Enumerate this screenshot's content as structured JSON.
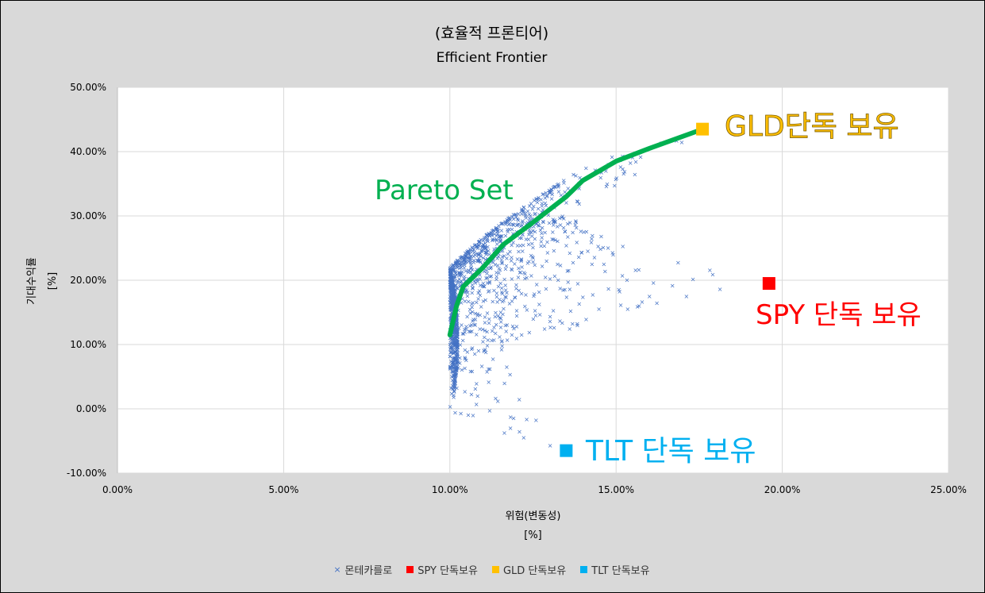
{
  "title": "(효율적 프론티어)",
  "subtitle": "Efficient Frontier",
  "chart_data": {
    "type": "scatter",
    "xlabel_line1": "위험(변동성)",
    "xlabel_line2": "[%]",
    "ylabel_line1": "기대수익률",
    "ylabel_line2": "[%]",
    "xlim": [
      0,
      25
    ],
    "ylim": [
      -10,
      50
    ],
    "x_ticks": [
      "0.00%",
      "5.00%",
      "10.00%",
      "15.00%",
      "20.00%",
      "25.00%"
    ],
    "y_ticks": [
      "50.00%",
      "40.00%",
      "30.00%",
      "20.00%",
      "10.00%",
      "0.00%",
      "-10.00%"
    ],
    "grid": true,
    "legend_position": "bottom",
    "series": [
      {
        "name": "몬테카를로",
        "color": "#4472c4",
        "marker": "x",
        "point_count": 1500
      },
      {
        "name": "SPY 단독보유",
        "color": "#ff0000",
        "marker": "square",
        "x": 19.6,
        "y": 19.5
      },
      {
        "name": "GLD 단독보유",
        "color": "#ffc000",
        "marker": "square",
        "x": 17.6,
        "y": 43.5
      },
      {
        "name": "TLT 단독보유",
        "color": "#00b0f0",
        "marker": "square",
        "x": 13.5,
        "y": -6.5
      }
    ],
    "pareto_set": {
      "color": "#00b050",
      "points": [
        [
          10.0,
          11.5
        ],
        [
          10.2,
          16.0
        ],
        [
          10.4,
          19.0
        ],
        [
          11.0,
          22.0
        ],
        [
          11.6,
          25.5
        ],
        [
          12.5,
          29.0
        ],
        [
          13.5,
          33.0
        ],
        [
          14.0,
          35.5
        ],
        [
          15.0,
          38.5
        ],
        [
          16.0,
          40.5
        ],
        [
          17.5,
          43.3
        ]
      ]
    },
    "annotations": [
      {
        "text": "Pareto Set",
        "color": "#00b050"
      },
      {
        "text": "GLD단독 보유",
        "color": "#ffc000"
      },
      {
        "text": "SPY 단독 보유",
        "color": "#ff0000"
      },
      {
        "text": "TLT 단독 보유",
        "color": "#00b0f0"
      }
    ]
  }
}
